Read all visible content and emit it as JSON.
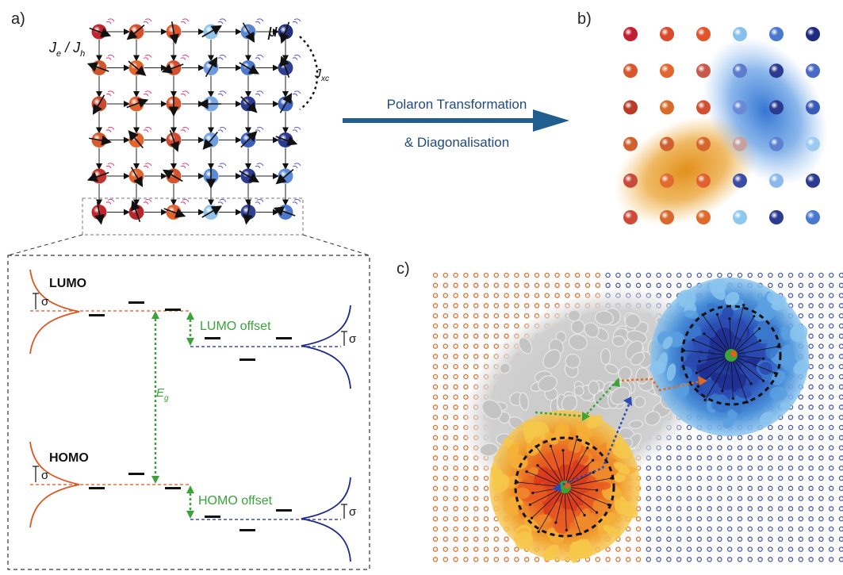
{
  "panels": {
    "a": "a)",
    "b": "b)",
    "c": "c)"
  },
  "lattice": {
    "coupling_label": "J",
    "coupling_e_sub": "e",
    "coupling_sep": " / J",
    "coupling_h_sub": "h",
    "dipole_label": "μ",
    "exchange_label": "J",
    "exchange_sub": "xc",
    "rows": 6,
    "cols": 6,
    "site_colors": [
      [
        "#c0272d",
        "#d8502a",
        "#e0552c",
        "#8fc3ea",
        "#5a86cf",
        "#22307e"
      ],
      [
        "#d0562e",
        "#e0662c",
        "#d4512f",
        "#6b9ae0",
        "#4c79cc",
        "#2e3f94"
      ],
      [
        "#c84a2f",
        "#e2622e",
        "#d5572f",
        "#7aa6e4",
        "#2c3b90",
        "#3e64c0"
      ],
      [
        "#d65a2e",
        "#e2652c",
        "#cc4b2d",
        "#6f9fe2",
        "#3c5dba",
        "#2c3b90"
      ],
      [
        "#c0332d",
        "#e0662c",
        "#d4542f",
        "#5b8ad6",
        "#2c3b90",
        "#5d8ad8"
      ],
      [
        "#c0272d",
        "#b8252b",
        "#e2602e",
        "#8fc3ea",
        "#2e3f94",
        "#4c79cc"
      ]
    ]
  },
  "arrow": {
    "line1": "Polaron Transformation",
    "line2": "& Diagonalisation",
    "color": "#1f5e8e"
  },
  "energy": {
    "lumo": "LUMO",
    "homo": "HOMO",
    "sigma": "σ",
    "lumo_offset": "LUMO offset",
    "homo_offset": "HOMO offset",
    "gap_label": "E",
    "gap_sub": "g",
    "donor_color": "#e0551f",
    "acceptor_color": "#1c2a8a",
    "offset_color": "#3aa33a"
  },
  "colors": {
    "donor": "#e07030",
    "acceptor": "#4a5ab0",
    "hole_cloud": "#e08a10",
    "electron_cloud": "#2a6ed0"
  }
}
